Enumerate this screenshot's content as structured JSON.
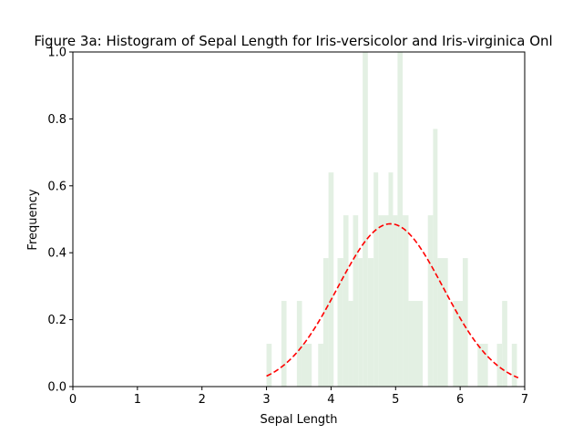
{
  "chart_data": {
    "type": "bar",
    "title": "Figure 3a: Histogram of Sepal Length for Iris-versicolor and Iris-virginica Onl",
    "xlabel": "Sepal Length",
    "ylabel": "Frequency",
    "xlim": [
      0,
      7
    ],
    "ylim": [
      0,
      1.0
    ],
    "xticks": [
      "0",
      "1",
      "2",
      "3",
      "4",
      "5",
      "6",
      "7"
    ],
    "yticks": [
      "0.0",
      "0.2",
      "0.4",
      "0.6",
      "0.8",
      "1.0"
    ],
    "grid": false,
    "bar_color": "#e3f0e3",
    "bins": [
      {
        "x0": 3.0,
        "x1": 3.08,
        "value": 0.128
      },
      {
        "x0": 3.23,
        "x1": 3.31,
        "value": 0.256
      },
      {
        "x0": 3.47,
        "x1": 3.55,
        "value": 0.256
      },
      {
        "x0": 3.55,
        "x1": 3.7,
        "value": 0.128
      },
      {
        "x0": 3.8,
        "x1": 3.88,
        "value": 0.128
      },
      {
        "x0": 3.88,
        "x1": 3.96,
        "value": 0.384
      },
      {
        "x0": 3.96,
        "x1": 4.04,
        "value": 0.64
      },
      {
        "x0": 4.1,
        "x1": 4.19,
        "value": 0.384
      },
      {
        "x0": 4.19,
        "x1": 4.27,
        "value": 0.512
      },
      {
        "x0": 4.27,
        "x1": 4.34,
        "value": 0.256
      },
      {
        "x0": 4.34,
        "x1": 4.42,
        "value": 0.512
      },
      {
        "x0": 4.42,
        "x1": 4.49,
        "value": 0.384
      },
      {
        "x0": 4.49,
        "x1": 4.57,
        "value": 1.0
      },
      {
        "x0": 4.57,
        "x1": 4.66,
        "value": 0.384
      },
      {
        "x0": 4.66,
        "x1": 4.73,
        "value": 0.64
      },
      {
        "x0": 4.73,
        "x1": 4.89,
        "value": 0.512
      },
      {
        "x0": 4.89,
        "x1": 4.96,
        "value": 0.64
      },
      {
        "x0": 4.96,
        "x1": 5.03,
        "value": 0.512
      },
      {
        "x0": 5.03,
        "x1": 5.11,
        "value": 1.0
      },
      {
        "x0": 5.11,
        "x1": 5.2,
        "value": 0.512
      },
      {
        "x0": 5.2,
        "x1": 5.42,
        "value": 0.256
      },
      {
        "x0": 5.5,
        "x1": 5.58,
        "value": 0.512
      },
      {
        "x0": 5.58,
        "x1": 5.65,
        "value": 0.77
      },
      {
        "x0": 5.65,
        "x1": 5.81,
        "value": 0.384
      },
      {
        "x0": 5.89,
        "x1": 6.04,
        "value": 0.256
      },
      {
        "x0": 6.04,
        "x1": 6.12,
        "value": 0.384
      },
      {
        "x0": 6.27,
        "x1": 6.43,
        "value": 0.128
      },
      {
        "x0": 6.57,
        "x1": 6.65,
        "value": 0.128
      },
      {
        "x0": 6.65,
        "x1": 6.73,
        "value": 0.256
      },
      {
        "x0": 6.8,
        "x1": 6.88,
        "value": 0.128
      }
    ],
    "curve": {
      "style": "dashed",
      "color": "#ff0000",
      "mean": 4.92,
      "std": 0.82,
      "x_range": [
        3.0,
        6.9
      ]
    }
  }
}
